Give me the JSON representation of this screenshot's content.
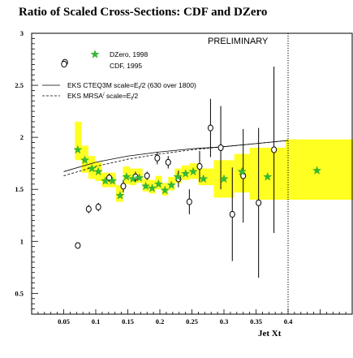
{
  "chart_data": {
    "type": "scatter",
    "title": "Ratio of Scaled Cross-Sections: CDF and DZero",
    "xlabel": "Jet Xt",
    "ylabel": "",
    "xlim": [
      0.0,
      0.5
    ],
    "ylim": [
      0.3,
      3.0
    ],
    "x_ticks": [
      0.05,
      0.1,
      0.15,
      0.2,
      0.25,
      0.3,
      0.35,
      0.4
    ],
    "x_tick_labels": [
      "0.05",
      "0.1",
      "0.15",
      "0.2",
      "0.25",
      "0.3",
      "0.35",
      "0.4"
    ],
    "y_ticks": [
      0.5,
      1.0,
      1.5,
      2.0,
      2.5,
      3.0
    ],
    "y_tick_labels": [
      "0.5",
      "1",
      "1.5",
      "2",
      "2.5",
      "3"
    ],
    "annotation": "PRELIMINARY",
    "vertical_dotted_line_x": 0.4,
    "band_color": "#ffff22",
    "legend": {
      "position": "top-left",
      "entries": [
        {
          "label": "DZero, 1998",
          "marker": "star",
          "color": "#33bb33"
        },
        {
          "label": "CDF, 1995",
          "marker": "open-circle",
          "color": "#000000"
        }
      ],
      "curves": [
        {
          "label": "EKS CTEQ3M scale=E",
          "sub": "t",
          "suffix": "/2 (630 over 1800)",
          "style": "solid"
        },
        {
          "label": "EKS MRSA",
          "sup": "/",
          "label2": " scale=E",
          "sub": "t",
          "suffix": "/2",
          "style": "dashed"
        }
      ]
    },
    "series": [
      {
        "name": "DZero, 1998",
        "marker": "star",
        "x": [
          0.072,
          0.083,
          0.094,
          0.104,
          0.115,
          0.126,
          0.138,
          0.148,
          0.158,
          0.168,
          0.178,
          0.188,
          0.198,
          0.208,
          0.218,
          0.228,
          0.24,
          0.252,
          0.268,
          0.3,
          0.328,
          0.368,
          0.445
        ],
        "y": [
          1.88,
          1.78,
          1.7,
          1.67,
          1.58,
          1.58,
          1.44,
          1.62,
          1.6,
          1.61,
          1.53,
          1.51,
          1.55,
          1.49,
          1.54,
          1.62,
          1.65,
          1.67,
          1.6,
          1.6,
          1.67,
          1.62,
          1.68
        ],
        "band_lo": [
          1.78,
          1.66,
          1.6,
          1.58,
          1.52,
          1.52,
          1.38,
          1.55,
          1.54,
          1.56,
          1.48,
          1.46,
          1.5,
          1.44,
          1.49,
          1.56,
          1.59,
          1.6,
          1.54,
          1.42,
          1.47,
          1.4,
          1.4
        ],
        "band_hi": [
          2.15,
          1.92,
          1.82,
          1.76,
          1.66,
          1.66,
          1.54,
          1.72,
          1.7,
          1.7,
          1.6,
          1.59,
          1.63,
          1.56,
          1.62,
          1.7,
          1.73,
          1.75,
          1.7,
          1.78,
          1.84,
          1.9,
          1.98
        ],
        "bin_edges": [
          0.0675,
          0.078,
          0.0885,
          0.099,
          0.1095,
          0.1205,
          0.1315,
          0.1425,
          0.153,
          0.163,
          0.173,
          0.183,
          0.193,
          0.203,
          0.213,
          0.223,
          0.234,
          0.246,
          0.26,
          0.284,
          0.316,
          0.34,
          0.396,
          0.505
        ]
      },
      {
        "name": "CDF, 1995",
        "marker": "open-circle",
        "x": [
          0.072,
          0.089,
          0.104,
          0.121,
          0.143,
          0.162,
          0.18,
          0.196,
          0.213,
          0.229,
          0.246,
          0.262,
          0.279,
          0.295,
          0.313,
          0.33,
          0.354,
          0.378
        ],
        "y": [
          0.96,
          1.31,
          1.33,
          1.61,
          1.53,
          1.62,
          1.63,
          1.8,
          1.76,
          1.6,
          1.38,
          1.72,
          2.09,
          1.9,
          1.26,
          1.63,
          1.37,
          1.88
        ],
        "err": [
          0.0,
          0.04,
          0.04,
          0.04,
          0.06,
          0.05,
          0.04,
          0.06,
          0.06,
          0.08,
          0.12,
          0.15,
          0.28,
          0.4,
          0.45,
          0.45,
          0.72,
          0.8
        ]
      },
      {
        "name": "EKS CTEQ3M",
        "line": "solid",
        "x": [
          0.05,
          0.1,
          0.15,
          0.2,
          0.25,
          0.3,
          0.35,
          0.4
        ],
        "y": [
          1.67,
          1.76,
          1.82,
          1.86,
          1.89,
          1.91,
          1.94,
          1.97
        ]
      },
      {
        "name": "EKS MRSA",
        "line": "dashed",
        "x": [
          0.05,
          0.1,
          0.15,
          0.2,
          0.25,
          0.3,
          0.35,
          0.4
        ],
        "y": [
          1.63,
          1.72,
          1.79,
          1.84,
          1.88,
          1.91,
          1.94,
          1.97
        ]
      }
    ],
    "outlier_circle": {
      "x": 0.052,
      "y": 2.72
    }
  }
}
